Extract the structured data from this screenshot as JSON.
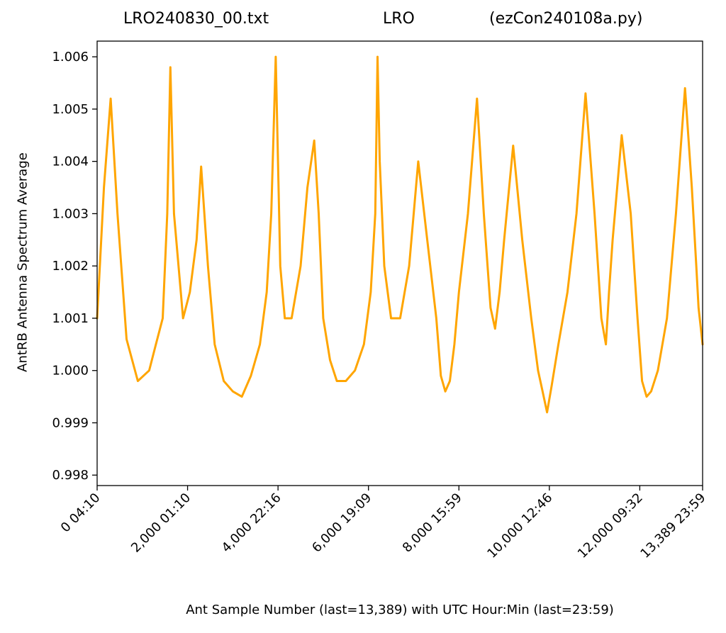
{
  "title": {
    "file": "LRO240830_00.txt",
    "station": "LRO",
    "program": "(ezCon240108a.py)"
  },
  "chart_data": {
    "type": "line",
    "title": "LRO240830_00.txt          LRO          (ezCon240108a.py)",
    "xlabel": "Ant Sample Number (last=13,389) with UTC Hour:Min (last=23:59)",
    "ylabel": "AntRB Antenna Spectrum Average",
    "xlim": [
      0,
      13389
    ],
    "ylim": [
      0.9978,
      1.0063
    ],
    "grid": false,
    "legend": "none",
    "line_color": "#ffa500",
    "yticks": [
      0.998,
      0.999,
      1.0,
      1.001,
      1.002,
      1.003,
      1.004,
      1.005,
      1.006
    ],
    "ytick_labels": [
      "0.998",
      "0.999",
      "1.000",
      "1.001",
      "1.002",
      "1.003",
      "1.004",
      "1.005",
      "1.006"
    ],
    "xticks": [
      0,
      2000,
      4000,
      6000,
      8000,
      10000,
      12000,
      13389
    ],
    "xtick_labels": [
      "0  04:10",
      "2,000  01:10",
      "4,000  22:16",
      "6,000  19:09",
      "8,000  15:59",
      "10,000  12:46",
      "12,000  09:32",
      "13,389  23:59"
    ],
    "series": [
      {
        "x": [
          0,
          150,
          300,
          450,
          650,
          900,
          1150,
          1300,
          1450,
          1550,
          1620,
          1700,
          1900,
          2050,
          2200,
          2300,
          2450,
          2600,
          2800,
          3000,
          3200,
          3400,
          3600,
          3750,
          3850,
          3950,
          4000,
          4050,
          4150,
          4300,
          4500,
          4650,
          4800,
          4900,
          5000,
          5150,
          5300,
          5500,
          5700,
          5900,
          6050,
          6150,
          6200,
          6250,
          6350,
          6500,
          6700,
          6900,
          7100,
          7300,
          7500,
          7600,
          7700,
          7800,
          7900,
          8000,
          8200,
          8400,
          8550,
          8700,
          8800,
          8900,
          9000,
          9200,
          9400,
          9600,
          9750,
          9850,
          9950,
          10050,
          10200,
          10400,
          10600,
          10800,
          11000,
          11150,
          11250,
          11320,
          11400,
          11600,
          11800,
          11950,
          12050,
          12150,
          12250,
          12400,
          12600,
          12800,
          13000,
          13150,
          13250,
          13300,
          13389
        ],
        "y": [
          1.001,
          1.0035,
          1.0052,
          1.003,
          1.0006,
          0.9998,
          1.0,
          1.0005,
          1.001,
          1.003,
          1.0058,
          1.003,
          1.001,
          1.0015,
          1.0025,
          1.0039,
          1.002,
          1.0005,
          0.9998,
          0.9996,
          0.9995,
          0.9999,
          1.0005,
          1.0015,
          1.003,
          1.006,
          1.004,
          1.002,
          1.001,
          1.001,
          1.002,
          1.0035,
          1.0044,
          1.003,
          1.001,
          1.0002,
          0.9998,
          0.9998,
          1.0,
          1.0005,
          1.0015,
          1.003,
          1.006,
          1.004,
          1.002,
          1.001,
          1.001,
          1.002,
          1.004,
          1.0025,
          1.001,
          0.9999,
          0.9996,
          0.9998,
          1.0005,
          1.0015,
          1.003,
          1.0052,
          1.003,
          1.0012,
          1.0008,
          1.0015,
          1.0025,
          1.0043,
          1.0025,
          1.001,
          1.0,
          0.9996,
          0.9992,
          0.9997,
          1.0005,
          1.0015,
          1.003,
          1.0053,
          1.003,
          1.001,
          1.0005,
          1.0015,
          1.0025,
          1.0045,
          1.003,
          1.001,
          0.9998,
          0.9995,
          0.9996,
          1.0,
          1.001,
          1.003,
          1.0054,
          1.0035,
          1.002,
          1.0012,
          1.0005
        ]
      }
    ]
  }
}
